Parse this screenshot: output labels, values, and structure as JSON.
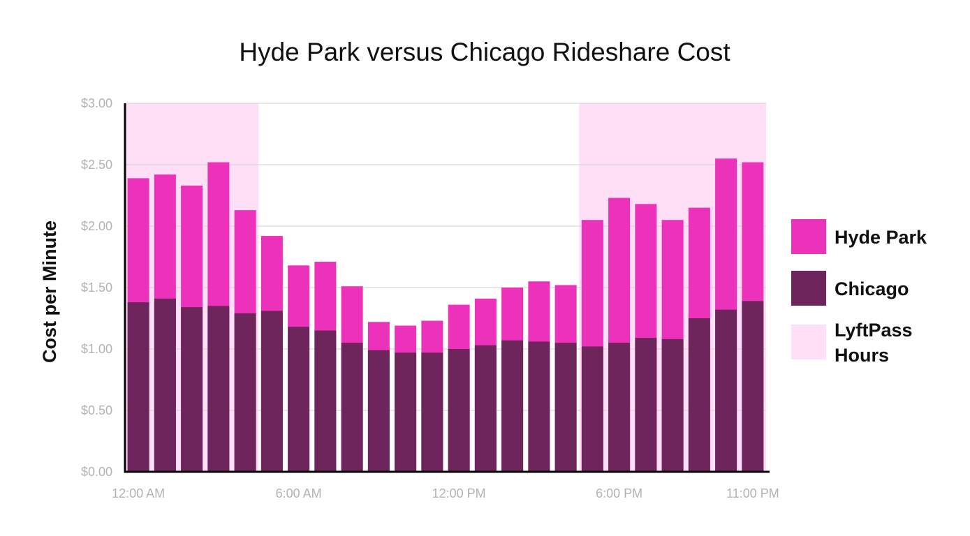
{
  "chart_data": {
    "type": "bar",
    "stacked": false,
    "overlay": true,
    "title": "Hyde Park versus Chicago Rideshare Cost",
    "xlabel": "",
    "ylabel": "Cost per Minute",
    "ylim": [
      0,
      3
    ],
    "yticks": [
      "$0.00",
      "$0.50",
      "$1.00",
      "$1.50",
      "$2.00",
      "$2.50",
      "$3.00"
    ],
    "x_tick_labels": [
      {
        "hour": 0,
        "label": "12:00 AM"
      },
      {
        "hour": 6,
        "label": "6:00 AM"
      },
      {
        "hour": 12,
        "label": "12:00 PM"
      },
      {
        "hour": 18,
        "label": "6:00 PM"
      },
      {
        "hour": 23,
        "label": "11:00 PM"
      }
    ],
    "grid": true,
    "legend_position": "right",
    "categories": [
      0,
      1,
      2,
      3,
      4,
      5,
      6,
      7,
      8,
      9,
      10,
      11,
      12,
      13,
      14,
      15,
      16,
      17,
      18,
      19,
      20,
      21,
      22,
      23
    ],
    "series": [
      {
        "name": "Hyde Park",
        "color": "#ec31bb",
        "values": [
          2.39,
          2.42,
          2.33,
          2.52,
          2.13,
          1.92,
          1.68,
          1.71,
          1.51,
          1.22,
          1.19,
          1.23,
          1.36,
          1.41,
          1.5,
          1.55,
          1.52,
          2.05,
          2.23,
          2.18,
          2.05,
          2.15,
          2.55,
          2.52
        ]
      },
      {
        "name": "Chicago",
        "color": "#6e255b",
        "values": [
          1.38,
          1.41,
          1.34,
          1.35,
          1.29,
          1.31,
          1.18,
          1.15,
          1.05,
          0.99,
          0.97,
          0.97,
          1.0,
          1.03,
          1.07,
          1.06,
          1.05,
          1.02,
          1.05,
          1.09,
          1.08,
          1.25,
          1.32,
          1.39
        ]
      }
    ],
    "shaded_regions": {
      "name": "LyftPass Hours",
      "color": "#ffdff5",
      "ranges": [
        [
          0,
          4
        ],
        [
          17,
          23
        ]
      ]
    },
    "legend": {
      "items": [
        {
          "label": "Hyde Park",
          "color": "#ec31bb"
        },
        {
          "label": "Chicago",
          "color": "#6e255b"
        },
        {
          "label": "LyftPass Hours",
          "color": "#ffdff5"
        }
      ]
    }
  }
}
